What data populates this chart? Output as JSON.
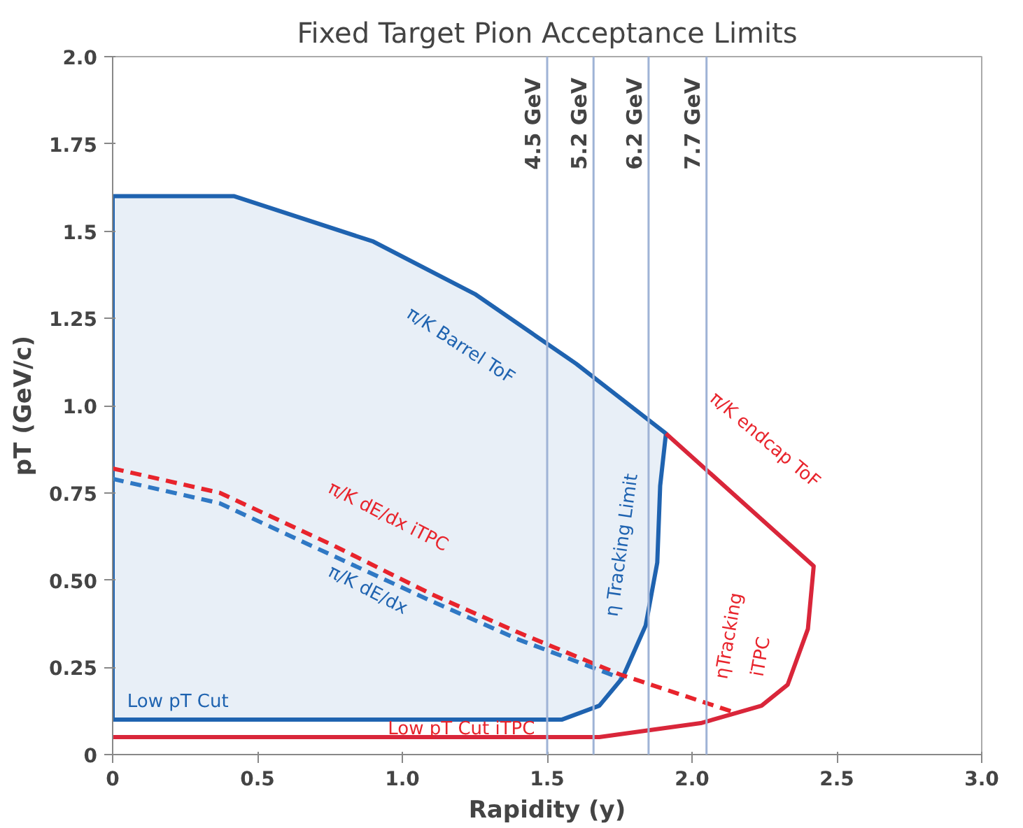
{
  "chart_data": {
    "type": "line",
    "title": "Fixed Target Pion Acceptance Limits",
    "xlabel": "Rapidity (y)",
    "ylabel": "pT (GeV/c)",
    "xlim": [
      0,
      3.0
    ],
    "ylim": [
      0,
      2.0
    ],
    "xticks": [
      0,
      0.5,
      {
        "value": 1.0,
        "label": "1.0"
      },
      1.5,
      {
        "value": 2.0,
        "label": "2.0"
      },
      2.5,
      {
        "value": 3.0,
        "label": "3.0"
      }
    ],
    "yticks": [
      0,
      0.25,
      {
        "value": 0.5,
        "label": "0.50"
      },
      0.75,
      {
        "value": 1.0,
        "label": "1.0"
      },
      1.25,
      1.5,
      1.75,
      {
        "value": 2.0,
        "label": "2.0"
      }
    ],
    "grid": false,
    "series": [
      {
        "type": "area",
        "color": "#1f63b0",
        "x": [
          0,
          0.42,
          0.9,
          1.25,
          1.6,
          1.91,
          1.89,
          1.88,
          1.84,
          1.76,
          1.68,
          1.55,
          0
        ],
        "values": [
          1.6,
          1.6,
          1.47,
          1.32,
          1.12,
          0.92,
          0.77,
          0.55,
          0.37,
          0.22,
          0.14,
          0.1,
          0.1
        ]
      },
      {
        "color": "#d9263a",
        "x": [
          0,
          1.68,
          2.03,
          2.24,
          2.33,
          2.4,
          2.42,
          1.91
        ],
        "values": [
          0.05,
          0.05,
          0.09,
          0.14,
          0.2,
          0.36,
          0.54,
          0.92
        ]
      },
      {
        "line_style": "dashed",
        "color": "#e8242c",
        "x": [
          0,
          0.37,
          0.76,
          1.1,
          1.4,
          1.75,
          2.15
        ],
        "values": [
          0.82,
          0.75,
          0.6,
          0.46,
          0.35,
          0.23,
          0.12
        ]
      },
      {
        "line_style": "dashed",
        "color": "#2f78c4",
        "x": [
          0,
          0.37,
          0.76,
          1.1,
          1.4,
          1.75
        ],
        "values": [
          0.79,
          0.72,
          0.57,
          0.44,
          0.33,
          0.22
        ]
      }
    ],
    "ref_lines": [
      {
        "axis": "x",
        "value": 1.5,
        "label": "4.5 GeV",
        "color": "#9fb3d6"
      },
      {
        "axis": "x",
        "value": 1.66,
        "label": "5.2 GeV",
        "color": "#9fb3d6"
      },
      {
        "axis": "x",
        "value": 1.85,
        "label": "6.2 GeV",
        "color": "#9fb3d6"
      },
      {
        "axis": "x",
        "value": 2.05,
        "label": "7.7 GeV",
        "color": "#9fb3d6"
      }
    ],
    "annotations": [
      "π/K Barrel ToF",
      "η Tracking Limit",
      "π/K endcap ToF",
      "ηTracking",
      "iTPC",
      "π/K dE/dx iTPC",
      "π/K dE/dx",
      "Low pT Cut",
      "Low pT Cut iTPC"
    ]
  }
}
